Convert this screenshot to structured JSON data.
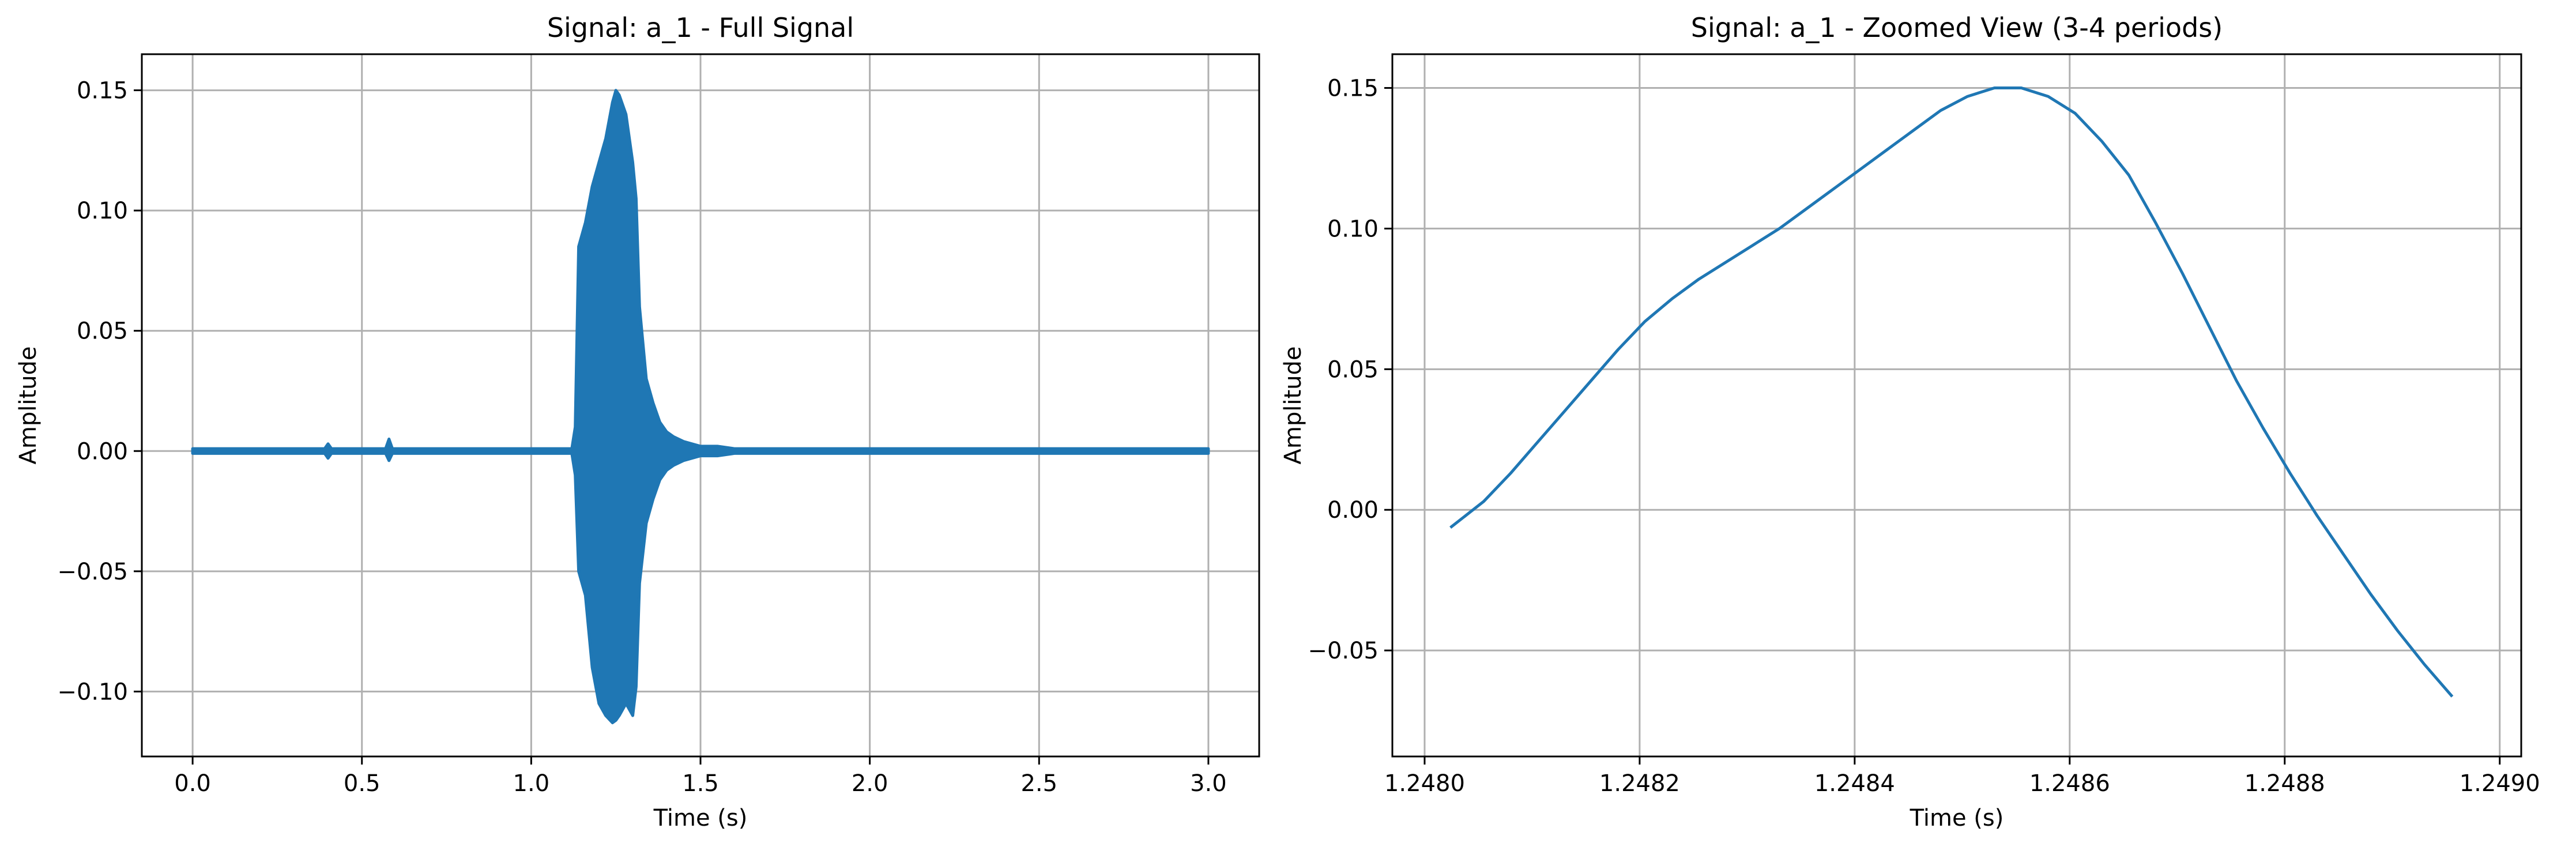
{
  "colors": {
    "series": "#1f77b4",
    "grid": "#b0b0b0"
  },
  "chart_data": [
    {
      "type": "line",
      "title": "Signal: a_1 - Full Signal",
      "xlabel": "Time (s)",
      "ylabel": "Amplitude",
      "xlim": [
        -0.15,
        3.15
      ],
      "ylim": [
        -0.127,
        0.165
      ],
      "grid": true,
      "xticks": [
        0.0,
        0.5,
        1.0,
        1.5,
        2.0,
        2.5,
        3.0
      ],
      "xtick_labels": [
        "0.0",
        "0.5",
        "1.0",
        "1.5",
        "2.0",
        "2.5",
        "3.0"
      ],
      "yticks": [
        -0.1,
        -0.05,
        0.0,
        0.05,
        0.1,
        0.15
      ],
      "ytick_labels": [
        "−0.10",
        "−0.05",
        "0.00",
        "0.05",
        "0.10",
        "0.15"
      ],
      "series": [
        {
          "envelope_t": [
            0.0,
            0.39,
            0.4,
            0.41,
            0.57,
            0.58,
            0.59,
            1.12,
            1.13,
            1.14,
            1.16,
            1.18,
            1.2,
            1.22,
            1.24,
            1.25,
            1.26,
            1.28,
            1.3,
            1.31,
            1.32,
            1.34,
            1.36,
            1.38,
            1.4,
            1.42,
            1.45,
            1.5,
            1.55,
            1.6,
            3.0
          ],
          "envelope_upper": [
            0.001,
            0.001,
            0.003,
            0.001,
            0.001,
            0.005,
            0.001,
            0.001,
            0.01,
            0.085,
            0.095,
            0.11,
            0.12,
            0.13,
            0.145,
            0.15,
            0.148,
            0.14,
            0.12,
            0.105,
            0.06,
            0.03,
            0.02,
            0.012,
            0.008,
            0.006,
            0.004,
            0.002,
            0.002,
            0.001,
            0.001
          ],
          "envelope_lower": [
            -0.001,
            -0.001,
            -0.003,
            -0.001,
            -0.001,
            -0.004,
            -0.001,
            -0.001,
            -0.01,
            -0.05,
            -0.06,
            -0.09,
            -0.105,
            -0.11,
            -0.113,
            -0.112,
            -0.11,
            -0.105,
            -0.11,
            -0.098,
            -0.055,
            -0.03,
            -0.02,
            -0.012,
            -0.008,
            -0.006,
            -0.004,
            -0.002,
            -0.002,
            -0.001,
            -0.001
          ]
        }
      ]
    },
    {
      "type": "line",
      "title": "Signal: a_1 - Zoomed View (3-4 periods)",
      "xlabel": "Time (s)",
      "ylabel": "Amplitude",
      "xlim": [
        1.24797,
        1.24902
      ],
      "ylim": [
        -0.0877,
        0.162
      ],
      "grid": true,
      "xticks": [
        1.248,
        1.2482,
        1.2484,
        1.2486,
        1.2488,
        1.249
      ],
      "xtick_labels": [
        "1.2480",
        "1.2482",
        "1.2484",
        "1.2486",
        "1.2488",
        "1.2490"
      ],
      "yticks": [
        -0.05,
        0.0,
        0.05,
        0.1,
        0.15
      ],
      "ytick_labels": [
        "−0.05",
        "0.00",
        "0.05",
        "0.10",
        "0.15"
      ],
      "series": [
        {
          "x": [
            1.248025,
            1.248055,
            1.24808,
            1.248105,
            1.24813,
            1.248155,
            1.24818,
            1.248205,
            1.24823,
            1.248255,
            1.24828,
            1.248305,
            1.24833,
            1.248355,
            1.24838,
            1.248405,
            1.24843,
            1.248455,
            1.24848,
            1.248505,
            1.24853,
            1.248555,
            1.24858,
            1.248605,
            1.24863,
            1.248655,
            1.24868,
            1.248705,
            1.24873,
            1.248755,
            1.24878,
            1.248805,
            1.24883,
            1.248855,
            1.24888,
            1.248905,
            1.24893,
            1.248955
          ],
          "y": [
            -0.006,
            0.003,
            0.013,
            0.024,
            0.035,
            0.046,
            0.057,
            0.067,
            0.075,
            0.082,
            0.088,
            0.094,
            0.1,
            0.107,
            0.114,
            0.121,
            0.128,
            0.135,
            0.142,
            0.147,
            0.15,
            0.15,
            0.147,
            0.141,
            0.131,
            0.119,
            0.102,
            0.084,
            0.065,
            0.046,
            0.029,
            0.013,
            -0.002,
            -0.016,
            -0.03,
            -0.043,
            -0.055,
            -0.066
          ]
        }
      ]
    }
  ]
}
